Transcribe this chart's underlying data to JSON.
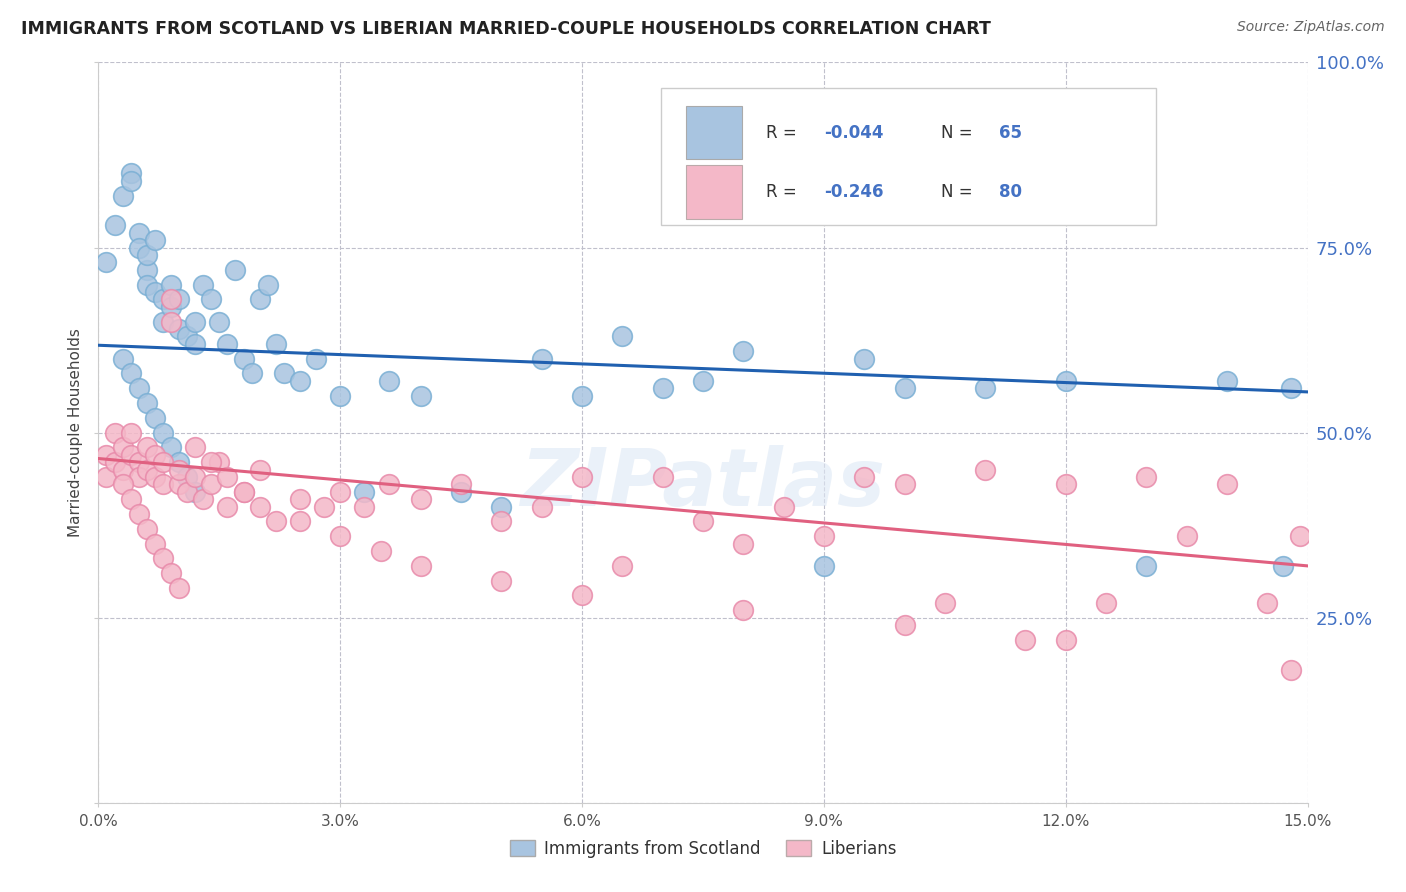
{
  "title": "IMMIGRANTS FROM SCOTLAND VS LIBERIAN MARRIED-COUPLE HOUSEHOLDS CORRELATION CHART",
  "source": "Source: ZipAtlas.com",
  "ylabel": "Married-couple Households",
  "ytick_vals": [
    0.0,
    0.25,
    0.5,
    0.75,
    1.0
  ],
  "ytick_labels_right": [
    "",
    "25.0%",
    "50.0%",
    "75.0%",
    "100.0%"
  ],
  "xtick_vals": [
    0.0,
    0.03,
    0.06,
    0.09,
    0.12,
    0.15
  ],
  "xtick_labels": [
    "0.0%",
    "3.0%",
    "6.0%",
    "9.0%",
    "12.0%",
    "15.0%"
  ],
  "scotland_R": -0.044,
  "scotland_N": 65,
  "liberia_R": -0.246,
  "liberia_N": 80,
  "scotland_color": "#a8c4e0",
  "scotland_edge_color": "#7aafd4",
  "liberia_color": "#f4b8c8",
  "liberia_edge_color": "#e88aaa",
  "scotland_line_color": "#2060b0",
  "liberia_line_color": "#e06080",
  "background_color": "#ffffff",
  "grid_color": "#c0c0cc",
  "right_tick_color": "#4472c4",
  "scotland_line_y0": 0.618,
  "scotland_line_y1": 0.555,
  "liberia_line_y0": 0.465,
  "liberia_line_y1": 0.32,
  "scotland_points_x": [
    0.001,
    0.002,
    0.003,
    0.004,
    0.004,
    0.005,
    0.005,
    0.006,
    0.006,
    0.006,
    0.007,
    0.007,
    0.008,
    0.008,
    0.009,
    0.009,
    0.01,
    0.01,
    0.011,
    0.012,
    0.012,
    0.013,
    0.014,
    0.015,
    0.016,
    0.017,
    0.018,
    0.019,
    0.02,
    0.021,
    0.022,
    0.023,
    0.025,
    0.027,
    0.03,
    0.033,
    0.036,
    0.04,
    0.045,
    0.05,
    0.055,
    0.06,
    0.065,
    0.07,
    0.075,
    0.08,
    0.09,
    0.095,
    0.1,
    0.11,
    0.12,
    0.13,
    0.14,
    0.147,
    0.148,
    0.003,
    0.004,
    0.005,
    0.006,
    0.007,
    0.008,
    0.009,
    0.01,
    0.011,
    0.012
  ],
  "scotland_points_y": [
    0.73,
    0.78,
    0.82,
    0.85,
    0.84,
    0.77,
    0.75,
    0.72,
    0.74,
    0.7,
    0.69,
    0.76,
    0.68,
    0.65,
    0.67,
    0.7,
    0.64,
    0.68,
    0.63,
    0.65,
    0.62,
    0.7,
    0.68,
    0.65,
    0.62,
    0.72,
    0.6,
    0.58,
    0.68,
    0.7,
    0.62,
    0.58,
    0.57,
    0.6,
    0.55,
    0.42,
    0.57,
    0.55,
    0.42,
    0.4,
    0.6,
    0.55,
    0.63,
    0.56,
    0.57,
    0.61,
    0.32,
    0.6,
    0.56,
    0.56,
    0.57,
    0.32,
    0.57,
    0.32,
    0.56,
    0.6,
    0.58,
    0.56,
    0.54,
    0.52,
    0.5,
    0.48,
    0.46,
    0.44,
    0.42
  ],
  "liberia_points_x": [
    0.001,
    0.001,
    0.002,
    0.002,
    0.003,
    0.003,
    0.004,
    0.004,
    0.005,
    0.005,
    0.006,
    0.006,
    0.007,
    0.007,
    0.008,
    0.008,
    0.009,
    0.009,
    0.01,
    0.01,
    0.011,
    0.012,
    0.013,
    0.014,
    0.015,
    0.016,
    0.018,
    0.02,
    0.022,
    0.025,
    0.028,
    0.03,
    0.033,
    0.036,
    0.04,
    0.045,
    0.05,
    0.055,
    0.06,
    0.065,
    0.07,
    0.075,
    0.08,
    0.085,
    0.09,
    0.095,
    0.1,
    0.105,
    0.11,
    0.115,
    0.12,
    0.125,
    0.13,
    0.135,
    0.14,
    0.145,
    0.148,
    0.149,
    0.003,
    0.004,
    0.005,
    0.006,
    0.007,
    0.008,
    0.009,
    0.01,
    0.012,
    0.014,
    0.016,
    0.018,
    0.02,
    0.025,
    0.03,
    0.035,
    0.04,
    0.05,
    0.06,
    0.08,
    0.1,
    0.12
  ],
  "liberia_points_y": [
    0.47,
    0.44,
    0.5,
    0.46,
    0.48,
    0.45,
    0.5,
    0.47,
    0.46,
    0.44,
    0.48,
    0.45,
    0.47,
    0.44,
    0.46,
    0.43,
    0.65,
    0.68,
    0.43,
    0.45,
    0.42,
    0.44,
    0.41,
    0.43,
    0.46,
    0.4,
    0.42,
    0.45,
    0.38,
    0.41,
    0.4,
    0.42,
    0.4,
    0.43,
    0.41,
    0.43,
    0.38,
    0.4,
    0.44,
    0.32,
    0.44,
    0.38,
    0.35,
    0.4,
    0.36,
    0.44,
    0.43,
    0.27,
    0.45,
    0.22,
    0.43,
    0.27,
    0.44,
    0.36,
    0.43,
    0.27,
    0.18,
    0.36,
    0.43,
    0.41,
    0.39,
    0.37,
    0.35,
    0.33,
    0.31,
    0.29,
    0.48,
    0.46,
    0.44,
    0.42,
    0.4,
    0.38,
    0.36,
    0.34,
    0.32,
    0.3,
    0.28,
    0.26,
    0.24,
    0.22
  ]
}
